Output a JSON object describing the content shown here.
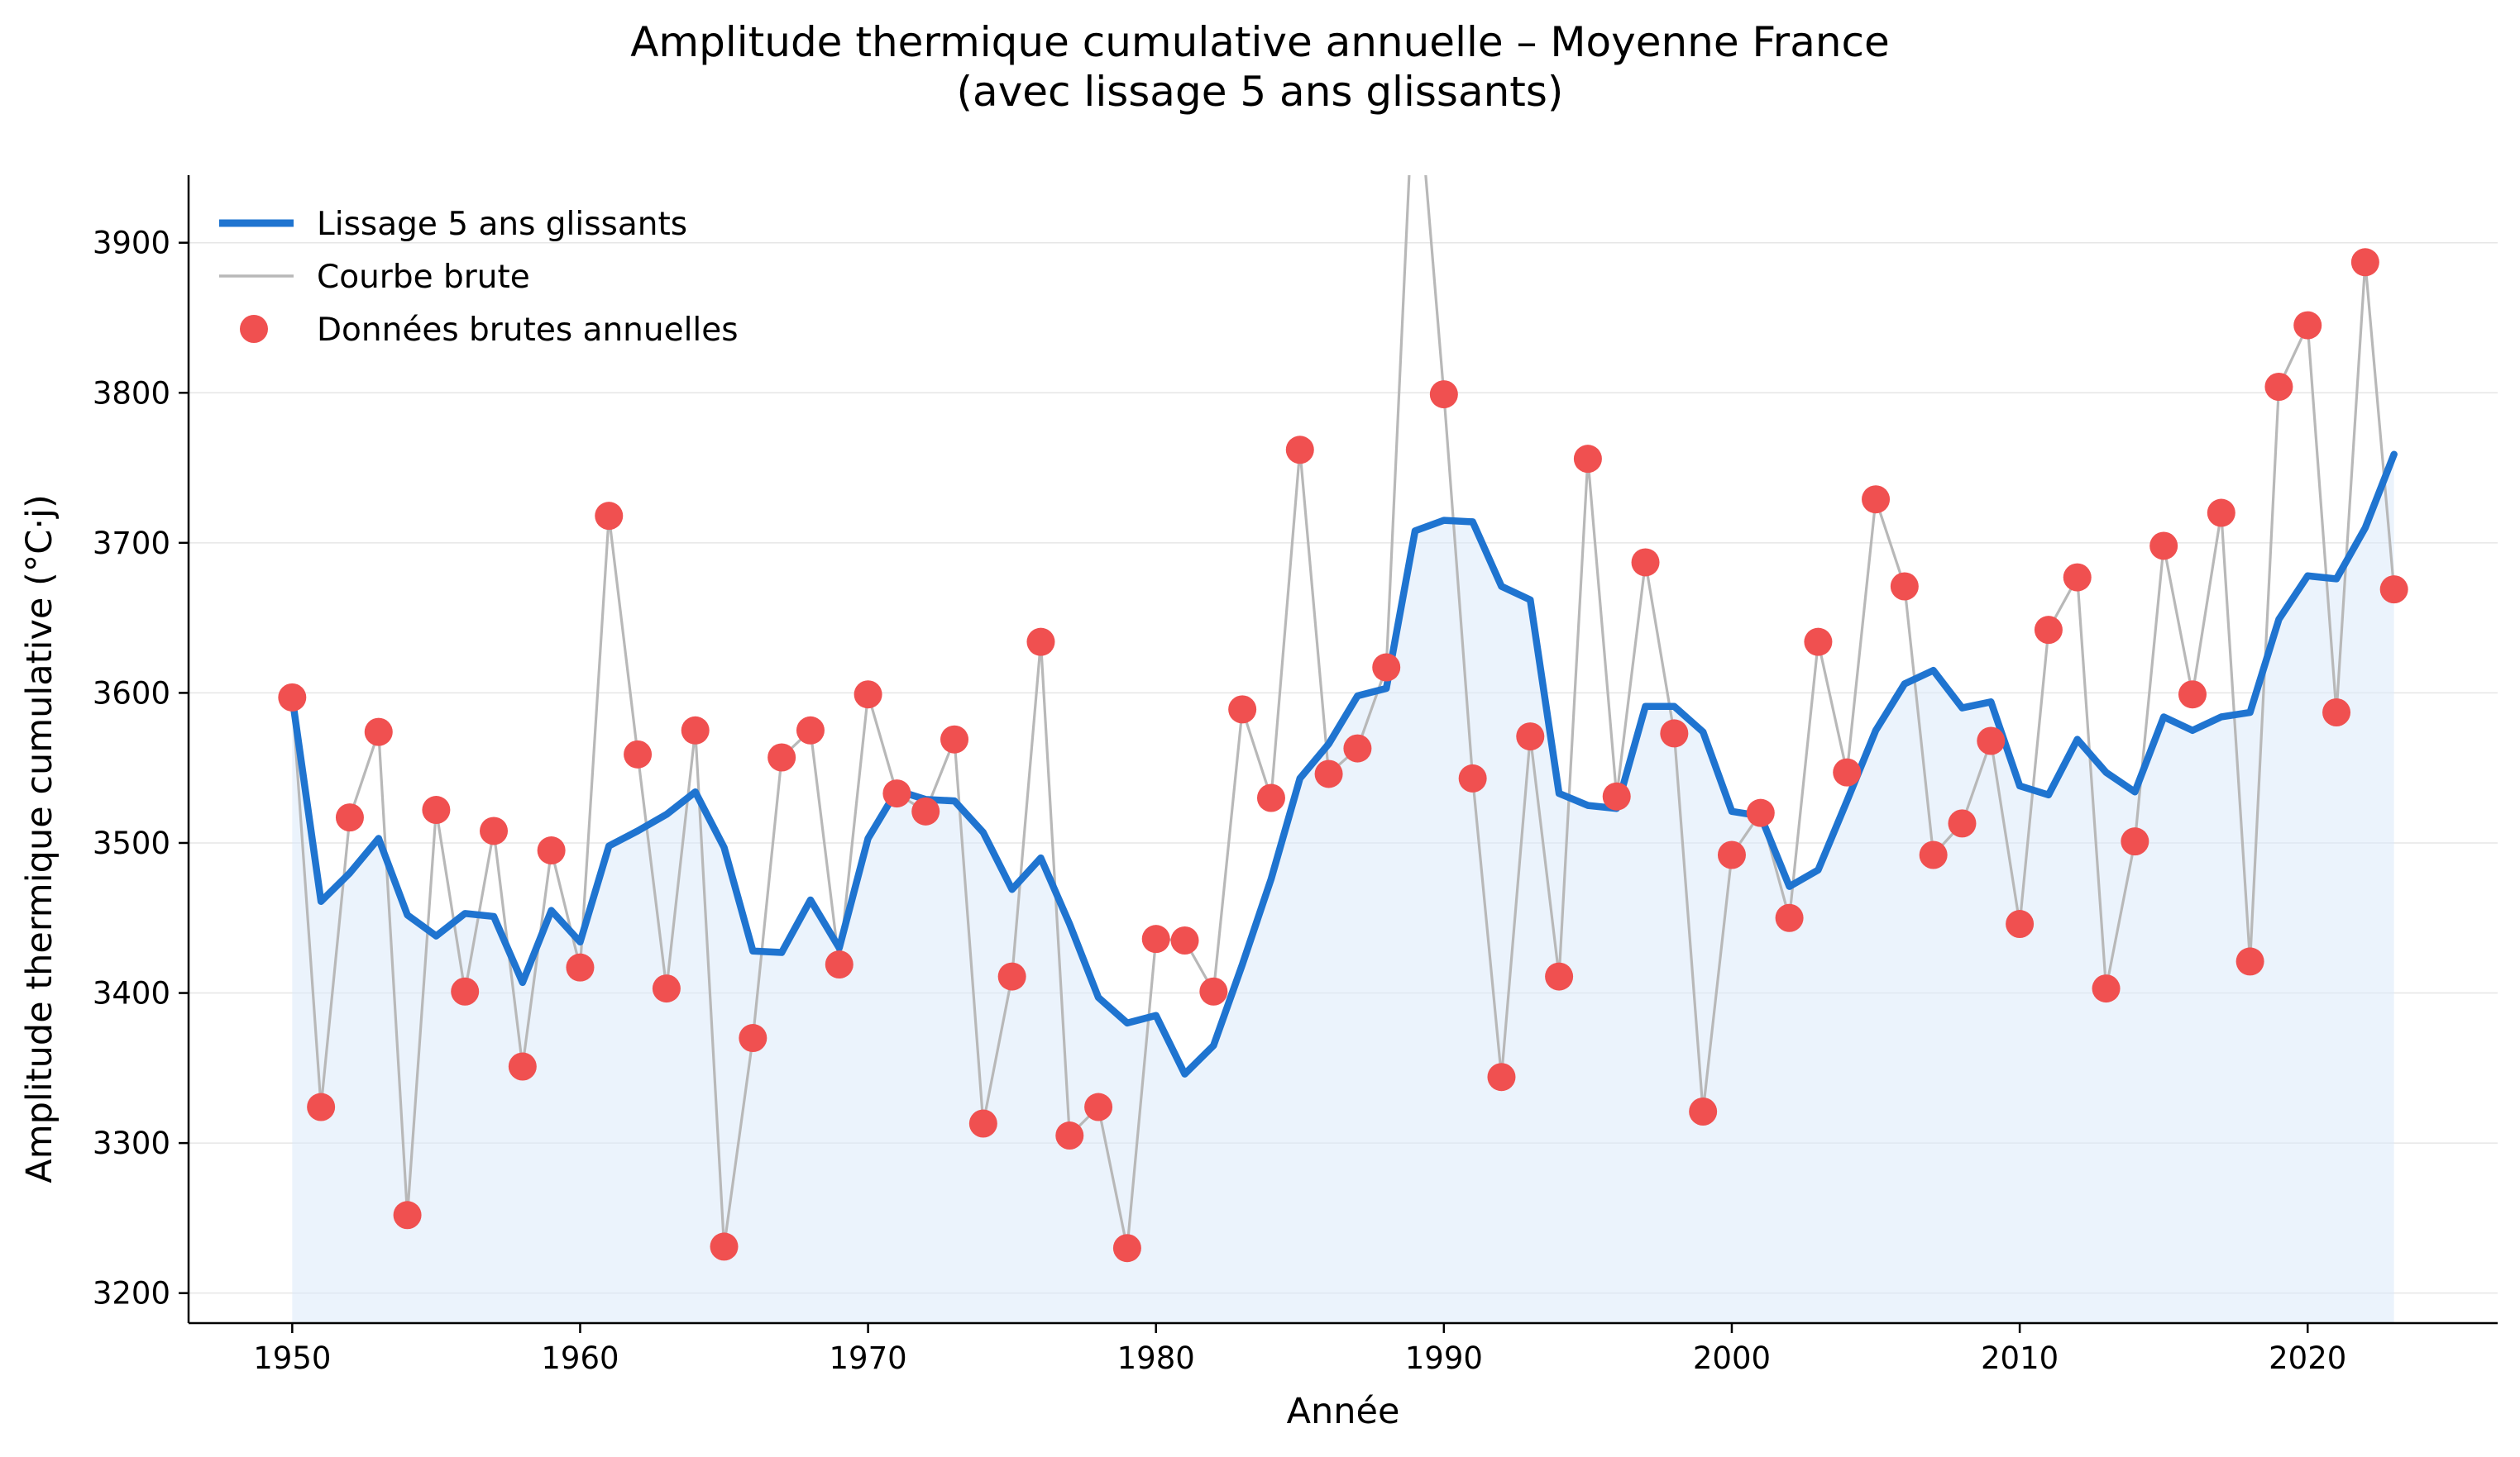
{
  "colors": {
    "smooth": "#1f74d0",
    "raw_line": "#b8b8b8",
    "points": "#f05050",
    "fill": "#dbeafa",
    "grid": "#e6e6e6"
  },
  "chart_data": {
    "type": "line",
    "title": "Amplitude thermique cumulative annuelle – Moyenne France",
    "subtitle": "(avec lissage 5 ans glissants)",
    "xlabel": "Année",
    "ylabel": "Amplitude thermique cumulative (°C·j)",
    "xlim": [
      1946.4,
      2026.6
    ],
    "ylim": [
      3180,
      3945
    ],
    "xticks": [
      1950,
      1960,
      1970,
      1980,
      1990,
      2000,
      2010,
      2020
    ],
    "yticks": [
      3200,
      3300,
      3400,
      3500,
      3600,
      3700,
      3800,
      3900
    ],
    "grid": "horizontal",
    "legend_position": "top-left",
    "x": [
      1950,
      1951,
      1952,
      1953,
      1954,
      1955,
      1956,
      1957,
      1958,
      1959,
      1960,
      1961,
      1962,
      1963,
      1964,
      1965,
      1966,
      1967,
      1968,
      1969,
      1970,
      1971,
      1972,
      1973,
      1974,
      1975,
      1976,
      1977,
      1978,
      1979,
      1980,
      1981,
      1982,
      1983,
      1984,
      1985,
      1986,
      1987,
      1988,
      1989,
      1990,
      1991,
      1992,
      1993,
      1994,
      1995,
      1996,
      1997,
      1998,
      1999,
      2000,
      2001,
      2002,
      2003,
      2004,
      2005,
      2006,
      2007,
      2008,
      2009,
      2010,
      2011,
      2012,
      2013,
      2014,
      2015,
      2016,
      2017,
      2018,
      2019,
      2020,
      2021,
      2022,
      2023
    ],
    "series": [
      {
        "name": "Lissage 5 ans glissants",
        "values": [
          3597,
          3461,
          3480,
          3503,
          3452,
          3438,
          3453,
          3451,
          3407,
          3455,
          3434,
          3498,
          3508,
          3519,
          3534,
          3497,
          3428,
          3427,
          3462,
          3430,
          3503,
          3535,
          3529,
          3528,
          3507,
          3469,
          3490,
          3446,
          3397,
          3380,
          3385,
          3346,
          3365,
          3419,
          3476,
          3543,
          3566,
          3598,
          3603,
          3708,
          3715,
          3714,
          3671,
          3662,
          3533,
          3525,
          3523,
          3591,
          3591,
          3574,
          3521,
          3518,
          3471,
          3482,
          3528,
          3575,
          3606,
          3615,
          3590,
          3594,
          3538,
          3532,
          3569,
          3547,
          3534,
          3584,
          3575,
          3584,
          3587,
          3649,
          3678,
          3676,
          3710,
          3759
        ]
      },
      {
        "name": "Courbe brute",
        "values": [
          3597,
          3324,
          3517,
          3574,
          3252,
          3522,
          3401,
          3508,
          3351,
          3495,
          3417,
          3718,
          3559,
          3403,
          3575,
          3231,
          3370,
          3557,
          3575,
          3419,
          3599,
          3533,
          3521,
          3569,
          3313,
          3411,
          3634,
          3305,
          3324,
          3230,
          3436,
          3435,
          3401,
          3589,
          3530,
          3762,
          3546,
          3563,
          3617,
          4030,
          3799,
          3543,
          3344,
          3571,
          3411,
          3756,
          3531,
          3687,
          3573,
          3321,
          3492,
          3520,
          3450,
          3634,
          3547,
          3729,
          3671,
          3492,
          3513,
          3568,
          3446,
          3642,
          3677,
          3403,
          3501,
          3698,
          3599,
          3720,
          3421,
          3804,
          3845,
          3587,
          3887,
          3669
        ]
      },
      {
        "name": "Données brutes annuelles",
        "points_x": [
          1950,
          1951,
          1952,
          1953,
          1954,
          1955,
          1956,
          1957,
          1958,
          1959,
          1960,
          1961,
          1962,
          1963,
          1964,
          1965,
          1966,
          1967,
          1968,
          1969,
          1970,
          1971,
          1972,
          1973,
          1974,
          1975,
          1976,
          1977,
          1978,
          1979,
          1980,
          1981,
          1982,
          1983,
          1984,
          1985,
          1986,
          1987,
          1988,
          1990,
          1991,
          1992,
          1993,
          1994,
          1995,
          1996,
          1997,
          1998,
          1999,
          2000,
          2001,
          2002,
          2003,
          2004,
          2005,
          2006,
          2007,
          2008,
          2009,
          2010,
          2011,
          2012,
          2013,
          2014,
          2015,
          2016,
          2017,
          2018,
          2019,
          2020,
          2021,
          2022,
          2023
        ],
        "points_y": [
          3597,
          3324,
          3517,
          3574,
          3252,
          3522,
          3401,
          3508,
          3351,
          3495,
          3417,
          3718,
          3559,
          3403,
          3575,
          3231,
          3370,
          3557,
          3575,
          3419,
          3599,
          3533,
          3521,
          3569,
          3313,
          3411,
          3634,
          3305,
          3324,
          3230,
          3436,
          3435,
          3401,
          3589,
          3530,
          3762,
          3546,
          3563,
          3617,
          3799,
          3543,
          3344,
          3571,
          3411,
          3756,
          3531,
          3687,
          3573,
          3321,
          3492,
          3520,
          3450,
          3634,
          3547,
          3729,
          3671,
          3492,
          3513,
          3568,
          3446,
          3642,
          3677,
          3403,
          3501,
          3698,
          3599,
          3720,
          3421,
          3804,
          3845,
          3587,
          3887,
          3669
        ]
      }
    ]
  }
}
